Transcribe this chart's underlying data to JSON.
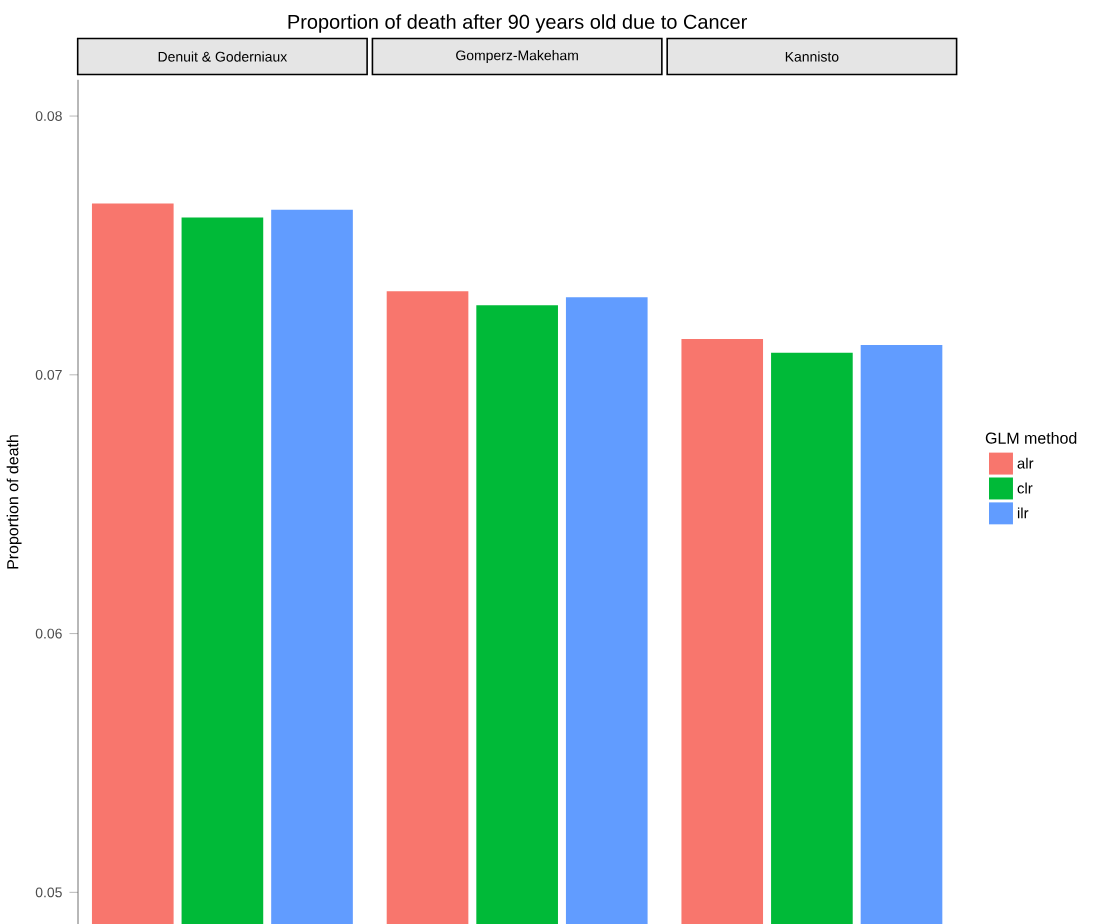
{
  "chart_data": {
    "type": "bar",
    "title": "Proportion of death after 90 years old due to Cancer",
    "ylabel": "Proportion of death",
    "categories": [
      "Denuit & Goderniaux",
      "Gomperz-Makeham",
      "Kannisto"
    ],
    "ylim": [
      0.04877,
      0.0814
    ],
    "yticks": [
      0.05,
      0.06,
      0.07,
      0.08
    ],
    "grid": false,
    "legend": "right",
    "legend_title": "GLM method",
    "series": [
      {
        "name": "alr",
        "color": "#f8766d",
        "values": [
          0.07662,
          0.07323,
          0.07138
        ]
      },
      {
        "name": "clr",
        "color": "#00ba38",
        "values": [
          0.07608,
          0.07269,
          0.07085
        ]
      },
      {
        "name": "ilr",
        "color": "#619cff",
        "values": [
          0.07638,
          0.073,
          0.07115
        ]
      }
    ]
  }
}
